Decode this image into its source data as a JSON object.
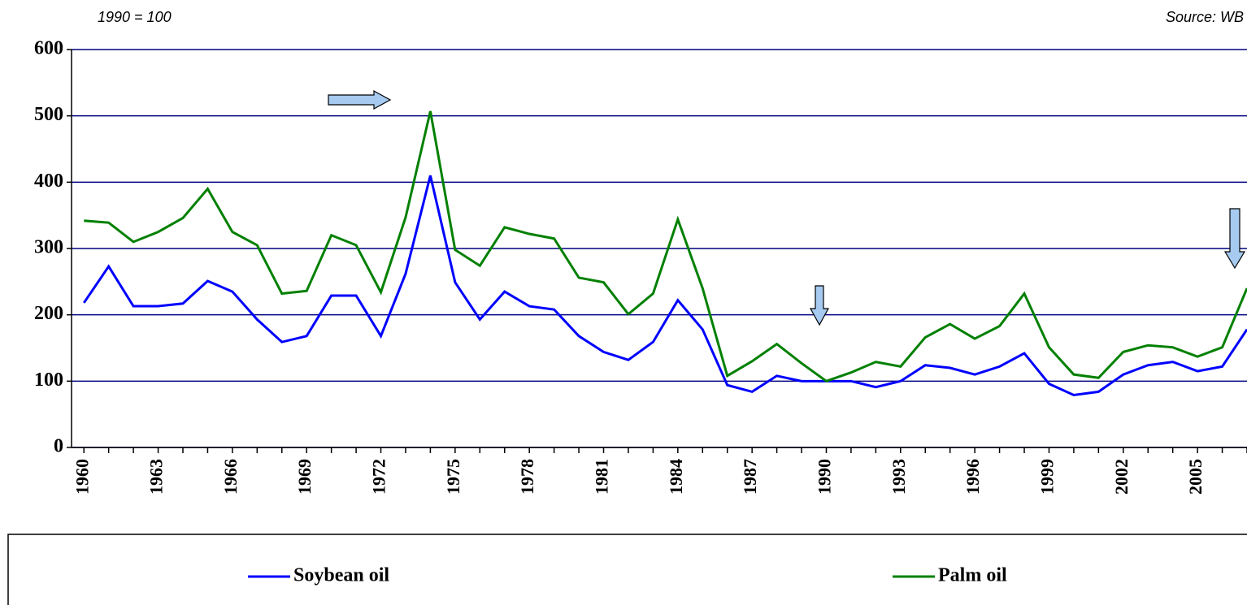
{
  "chart_data": {
    "type": "line",
    "subtitle": "1990 = 100",
    "annotation": "Source: WB",
    "x": [
      1960,
      1961,
      1962,
      1963,
      1964,
      1965,
      1966,
      1967,
      1968,
      1969,
      1970,
      1971,
      1972,
      1973,
      1974,
      1975,
      1976,
      1977,
      1978,
      1979,
      1980,
      1981,
      1982,
      1983,
      1984,
      1985,
      1986,
      1987,
      1988,
      1989,
      1990,
      1991,
      1992,
      1993,
      1994,
      1995,
      1996,
      1997,
      1998,
      1999,
      2000,
      2001,
      2002,
      2003,
      2004,
      2005,
      2006,
      2007
    ],
    "series": [
      {
        "name": "Soybean oil",
        "color": "#0000ff",
        "values": [
          218,
          273,
          213,
          213,
          217,
          251,
          235,
          193,
          159,
          168,
          229,
          229,
          168,
          262,
          410,
          249,
          193,
          235,
          213,
          208,
          168,
          144,
          132,
          159,
          222,
          178,
          94,
          84,
          108,
          100,
          100,
          100,
          91,
          100,
          124,
          120,
          110,
          122,
          142,
          96,
          79,
          84,
          110,
          124,
          129,
          115,
          122,
          178
        ]
      },
      {
        "name": "Palm oil",
        "color": "#008000",
        "values": [
          342,
          339,
          310,
          325,
          346,
          390,
          325,
          305,
          232,
          236,
          320,
          305,
          234,
          347,
          507,
          298,
          274,
          332,
          322,
          315,
          256,
          249,
          201,
          232,
          344,
          240,
          108,
          130,
          156,
          127,
          100,
          113,
          129,
          122,
          166,
          186,
          164,
          183,
          232,
          151,
          110,
          105,
          144,
          154,
          151,
          137,
          151,
          240
        ]
      }
    ],
    "xlim": [
      1959.5,
      2007
    ],
    "xticks": [
      1960,
      1963,
      1966,
      1969,
      1972,
      1975,
      1978,
      1981,
      1984,
      1987,
      1990,
      1993,
      1996,
      1999,
      2002,
      2005
    ],
    "ylim": [
      0,
      600
    ],
    "yticks": [
      0,
      100,
      200,
      300,
      400,
      500,
      600
    ],
    "grid": true
  }
}
